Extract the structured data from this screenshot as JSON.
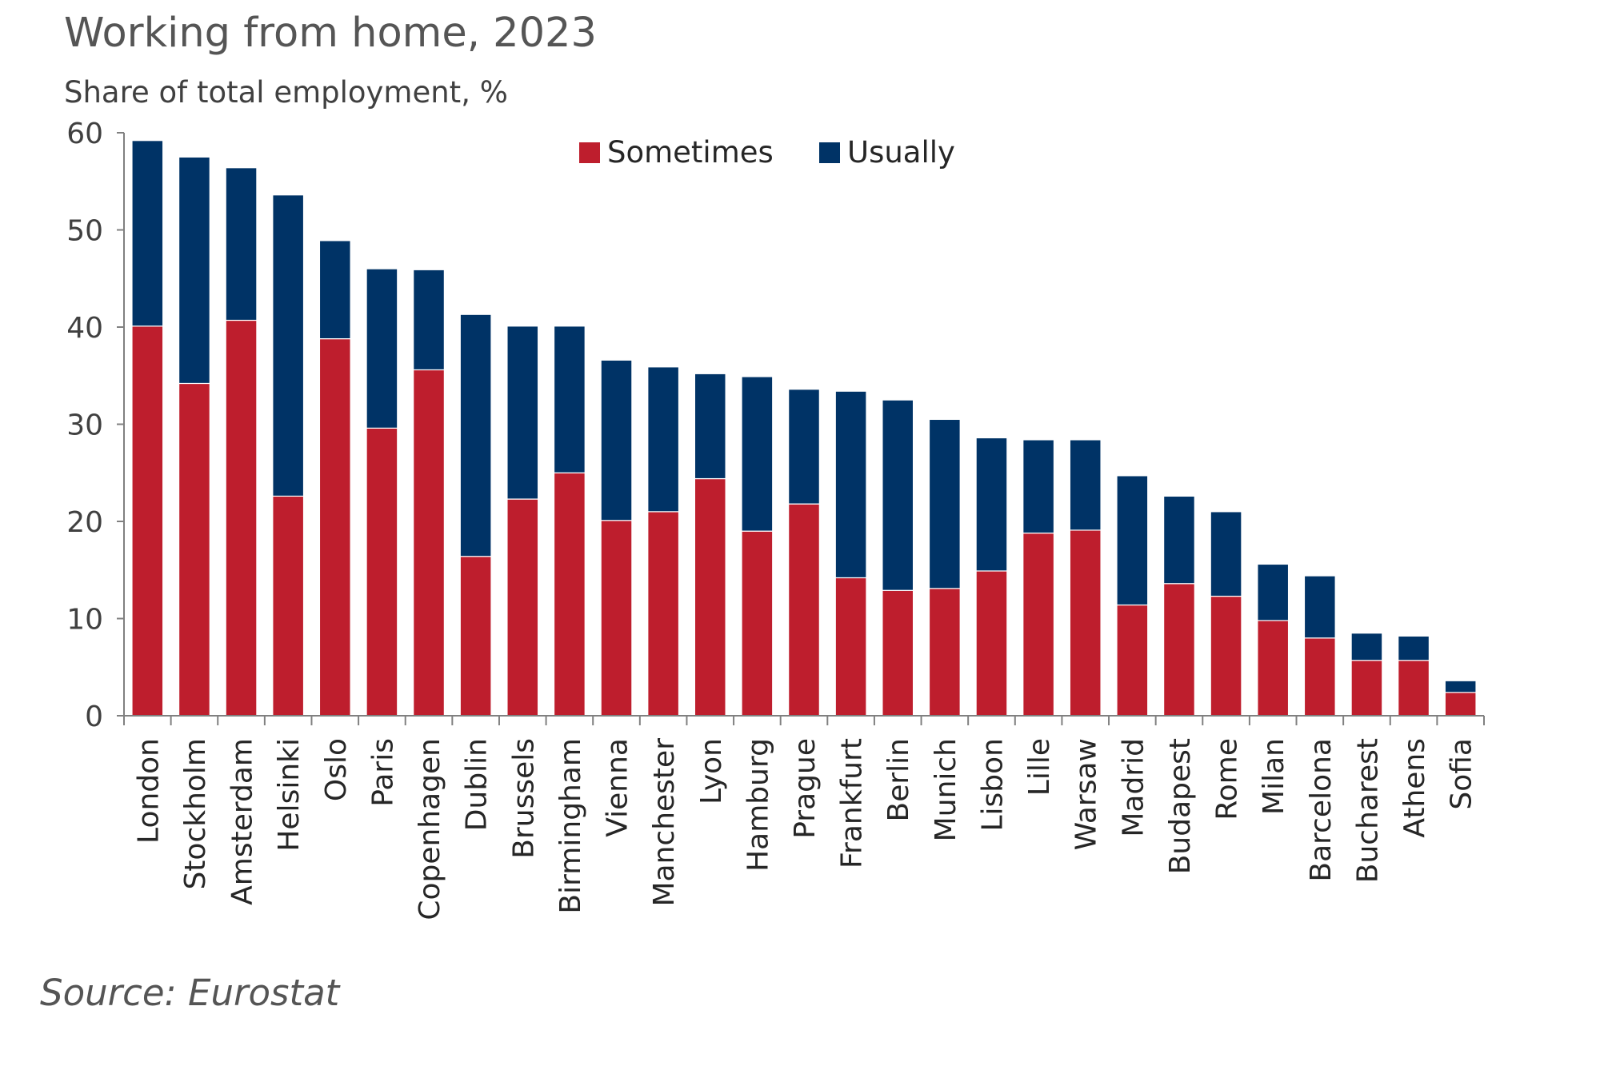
{
  "chart_data": {
    "type": "bar",
    "stacked": true,
    "title": "Working from home, 2023",
    "subtitle": "Share of total employment, %",
    "source": "Source: Eurostat",
    "categories": [
      "London",
      "Stockholm",
      "Amsterdam",
      "Helsinki",
      "Oslo",
      "Paris",
      "Copenhagen",
      "Dublin",
      "Brussels",
      "Birmingham",
      "Vienna",
      "Manchester",
      "Lyon",
      "Hamburg",
      "Prague",
      "Frankfurt",
      "Berlin",
      "Munich",
      "Lisbon",
      "Lille",
      "Warsaw",
      "Madrid",
      "Budapest",
      "Rome",
      "Milan",
      "Barcelona",
      "Bucharest",
      "Athens",
      "Sofia"
    ],
    "series": [
      {
        "name": "Sometimes",
        "color": "#be1e2d",
        "values": [
          40.1,
          34.2,
          40.7,
          22.6,
          38.8,
          29.6,
          35.6,
          16.4,
          22.3,
          25.0,
          20.1,
          21.0,
          24.4,
          19.0,
          21.8,
          14.2,
          12.9,
          13.1,
          14.9,
          18.8,
          19.1,
          11.4,
          13.6,
          12.3,
          9.8,
          8.0,
          5.7,
          5.7,
          2.4
        ]
      },
      {
        "name": "Usually",
        "color": "#003366",
        "values": [
          19.1,
          23.3,
          15.7,
          31.0,
          10.1,
          16.4,
          10.3,
          24.9,
          17.8,
          15.1,
          16.5,
          14.9,
          10.8,
          15.9,
          11.8,
          19.2,
          19.6,
          17.4,
          13.7,
          9.6,
          9.3,
          13.3,
          9.0,
          8.7,
          5.8,
          6.4,
          2.8,
          2.5,
          1.2
        ]
      }
    ],
    "ylim": [
      0,
      60
    ],
    "yticks": [
      0,
      10,
      20,
      30,
      40,
      50,
      60
    ],
    "legend": "top-center",
    "grid": false
  }
}
